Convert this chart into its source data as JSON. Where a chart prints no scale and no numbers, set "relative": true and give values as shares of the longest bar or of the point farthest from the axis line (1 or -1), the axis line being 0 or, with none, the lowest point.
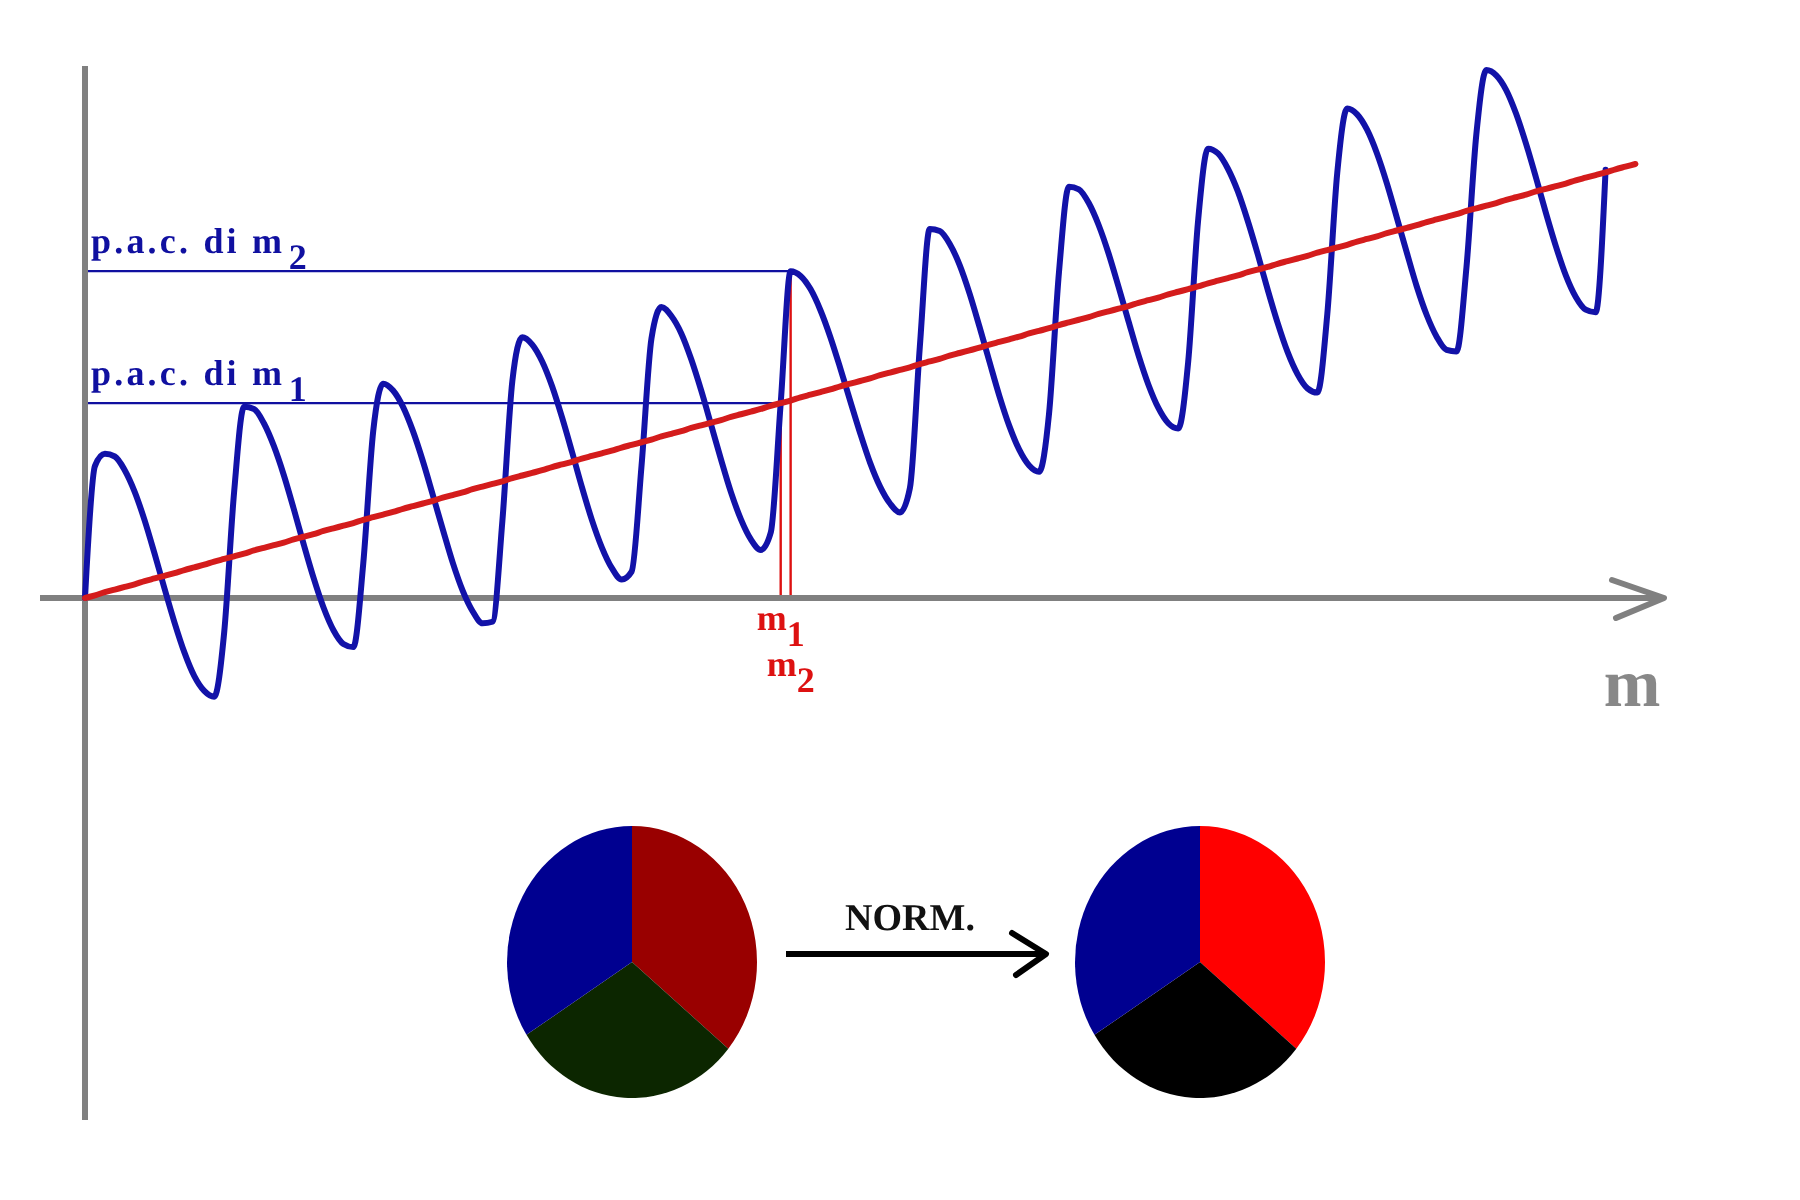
{
  "chart_data": [
    {
      "type": "line",
      "relative": true,
      "xlabel": "m",
      "categories": [
        null,
        null,
        null,
        null,
        null,
        null,
        null,
        null,
        null,
        null,
        null,
        null,
        null,
        null,
        null,
        null,
        null,
        null,
        null,
        null,
        null,
        null,
        null,
        null,
        null,
        null,
        null,
        null,
        null,
        null,
        null,
        null,
        null,
        null,
        null,
        null,
        null,
        null,
        null,
        null,
        null,
        null,
        null,
        null,
        null,
        null,
        null,
        null,
        null,
        null,
        null,
        null,
        null,
        null,
        null,
        null,
        null,
        null,
        null,
        null,
        null,
        null,
        null,
        null,
        null,
        null,
        null,
        null,
        null,
        null,
        "m$_{1}$",
        "m$_{2}$",
        null,
        null,
        null,
        null,
        null,
        null,
        null,
        null,
        null,
        null,
        null,
        null,
        null,
        null,
        null,
        null,
        null,
        null,
        null,
        null,
        null,
        null,
        null,
        null,
        null,
        null,
        null,
        null,
        null,
        null,
        null,
        null,
        null,
        null,
        null,
        null,
        null,
        null,
        null,
        null,
        null,
        null,
        null,
        null,
        null,
        null,
        null,
        null,
        null,
        null,
        null,
        null,
        null,
        null,
        null,
        null,
        null,
        null,
        null,
        null,
        null,
        null,
        null,
        null,
        null,
        null,
        null,
        null,
        null,
        null,
        null,
        null,
        null,
        null,
        null,
        null,
        null,
        null,
        null,
        null,
        null,
        null,
        null,
        null,
        null
      ],
      "series": [
        {
          "color": "#1212a8",
          "values": [
            0,
            0.25,
            0.273,
            0.268,
            0.242,
            0.201,
            0.147,
            0.084,
            0.018,
            -0.046,
            -0.103,
            -0.148,
            -0.176,
            -0.187,
            -0.066,
            0.2,
            0.362,
            0.358,
            0.331,
            0.288,
            0.233,
            0.169,
            0.102,
            0.038,
            -0.018,
            -0.061,
            -0.087,
            -0.093,
            0.066,
            0.316,
            0.406,
            0.393,
            0.362,
            0.316,
            0.259,
            0.195,
            0.13,
            0.067,
            0.014,
            -0.025,
            -0.048,
            -0.045,
            0.147,
            0.411,
            0.494,
            0.48,
            0.448,
            0.401,
            0.342,
            0.277,
            0.21,
            0.148,
            0.096,
            0.057,
            0.035,
            0.05,
            0.251,
            0.492,
            0.551,
            0.534,
            0.501,
            0.452,
            0.393,
            0.328,
            0.262,
            0.2,
            0.149,
            0.111,
            0.091,
            0.124,
            0.369,
            0.619,
            0.61,
            0.585,
            0.545,
            0.494,
            0.435,
            0.373,
            0.312,
            0.256,
            0.211,
            0.179,
            0.162,
            0.208,
            0.476,
            0.699,
            0.695,
            0.671,
            0.631,
            0.577,
            0.514,
            0.448,
            0.383,
            0.326,
            0.281,
            0.251,
            0.239,
            0.349,
            0.617,
            0.779,
            0.774,
            0.748,
            0.706,
            0.652,
            0.589,
            0.524,
            0.46,
            0.404,
            0.36,
            0.331,
            0.321,
            0.447,
            0.715,
            0.851,
            0.842,
            0.813,
            0.77,
            0.714,
            0.651,
            0.584,
            0.521,
            0.466,
            0.424,
            0.397,
            0.389,
            0.538,
            0.805,
            0.927,
            0.916,
            0.887,
            0.842,
            0.785,
            0.72,
            0.654,
            0.59,
            0.536,
            0.495,
            0.47,
            0.467,
            0.626,
            0.879,
            1,
            0.99,
            0.962,
            0.917,
            0.86,
            0.796,
            0.729,
            0.666,
            0.611,
            0.57,
            0.546,
            0.541,
            0.811,
            null,
            null,
            null
          ]
        },
        {
          "color": "#d41c1c",
          "values": [
            0,
            0.005,
            0.011,
            0.016,
            0.021,
            0.026,
            0.032,
            0.037,
            0.042,
            0.047,
            0.053,
            0.058,
            0.063,
            0.069,
            0.074,
            0.079,
            0.084,
            0.09,
            0.095,
            0.1,
            0.105,
            0.111,
            0.116,
            0.121,
            0.127,
            0.132,
            0.137,
            0.142,
            0.148,
            0.153,
            0.158,
            0.163,
            0.169,
            0.174,
            0.179,
            0.184,
            0.19,
            0.195,
            0.2,
            0.206,
            0.211,
            0.216,
            0.221,
            0.227,
            0.232,
            0.237,
            0.242,
            0.248,
            0.253,
            0.258,
            0.264,
            0.269,
            0.274,
            0.279,
            0.285,
            0.29,
            0.295,
            0.3,
            0.306,
            0.311,
            0.316,
            0.322,
            0.327,
            0.332,
            0.337,
            0.343,
            0.348,
            0.353,
            0.358,
            0.364,
            0.369,
            0.374,
            0.38,
            0.385,
            0.39,
            0.395,
            0.401,
            0.406,
            0.411,
            0.416,
            0.422,
            0.427,
            0.432,
            0.437,
            0.443,
            0.448,
            0.453,
            0.459,
            0.464,
            0.469,
            0.474,
            0.48,
            0.485,
            0.49,
            0.495,
            0.501,
            0.506,
            0.511,
            0.517,
            0.522,
            0.527,
            0.532,
            0.538,
            0.543,
            0.548,
            0.553,
            0.559,
            0.564,
            0.569,
            0.575,
            0.58,
            0.585,
            0.59,
            0.596,
            0.601,
            0.606,
            0.611,
            0.617,
            0.622,
            0.627,
            0.633,
            0.638,
            0.643,
            0.648,
            0.654,
            0.659,
            0.664,
            0.669,
            0.675,
            0.68,
            0.685,
            0.691,
            0.696,
            0.701,
            0.706,
            0.712,
            0.717,
            0.722,
            0.727,
            0.733,
            0.738,
            0.743,
            0.748,
            0.754,
            0.759,
            0.764,
            0.77,
            0.775,
            0.78,
            0.785,
            0.791,
            0.796,
            0.801,
            0.806,
            0.812,
            0.817,
            0.822
          ]
        }
      ],
      "annotations": [
        {
          "text": "p.a.c. di m$_{1}$",
          "x": "m$_{1}$",
          "y": 0.369
        },
        {
          "text": "p.a.c. di m$_{2}$",
          "x": "m$_{2}$",
          "y": 0.619
        }
      ]
    },
    {
      "type": "pie",
      "categories": [
        null,
        null,
        null
      ],
      "values": [
        36,
        30,
        34
      ],
      "colors": [
        "#990000",
        "#0c2600",
        "#000090"
      ]
    },
    {
      "type": "pie",
      "categories": [
        null,
        null,
        null
      ],
      "values": [
        36,
        30,
        34
      ],
      "colors": [
        "#ff0000",
        "#000000",
        "#000090"
      ],
      "annotations": [
        "NORM."
      ]
    }
  ]
}
